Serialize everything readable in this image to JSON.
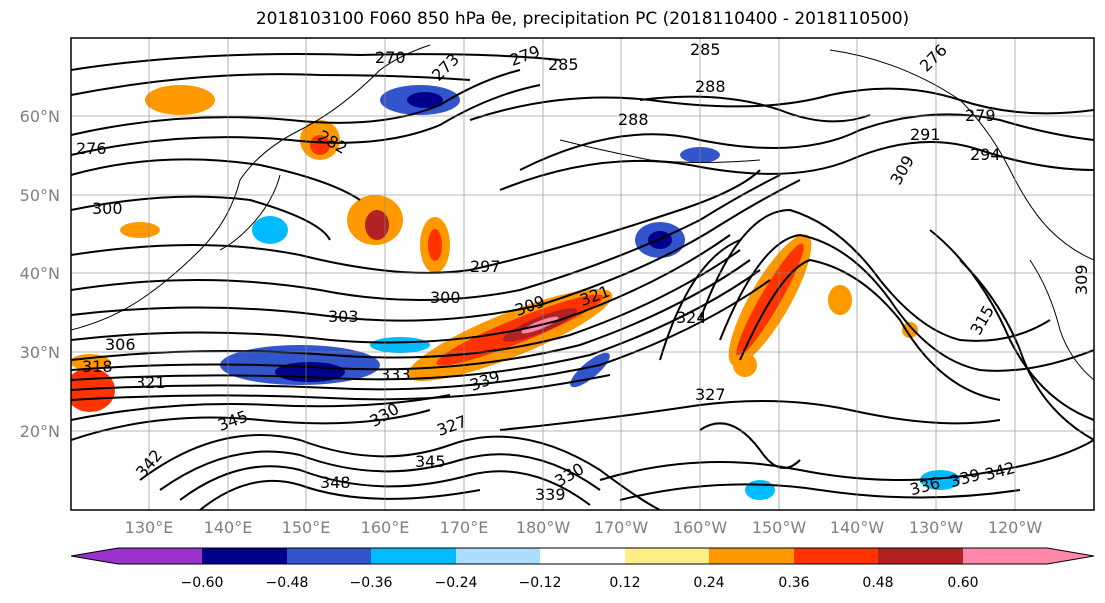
{
  "title": {
    "text": "2018103100 F060 850 hPa θe, precipitation PC (2018110400 - 2018110500)"
  },
  "map": {
    "lon_labels": [
      "130°E",
      "140°E",
      "150°E",
      "160°E",
      "170°E",
      "180°W",
      "170°W",
      "160°W",
      "150°W",
      "140°W",
      "130°W",
      "120°W"
    ],
    "lat_labels": [
      "60°N",
      "50°N",
      "40°N",
      "30°N",
      "20°N"
    ],
    "contour_labels": [
      "270",
      "273",
      "279",
      "285",
      "285",
      "288",
      "288",
      "279",
      "276",
      "282",
      "300",
      "297",
      "300",
      "303",
      "306",
      "309",
      "321",
      "324",
      "318",
      "321",
      "333",
      "339",
      "330",
      "327",
      "345",
      "342",
      "348",
      "345",
      "339",
      "330",
      "327",
      "336",
      "339",
      "342",
      "315",
      "309",
      "294",
      "291",
      "276",
      "309"
    ]
  },
  "colorbar": {
    "tick_labels": [
      "−0.60",
      "−0.48",
      "−0.36",
      "−0.24",
      "−0.12",
      "0.12",
      "0.24",
      "0.36",
      "0.48",
      "0.60"
    ],
    "under_color": "#9933cc",
    "over_color": "#ff88aa",
    "colors": [
      "#00008b",
      "#3355cc",
      "#00bbff",
      "#aaddff",
      "#ffffff",
      "#ffee88",
      "#ff9900",
      "#ff3300",
      "#b22222"
    ]
  }
}
